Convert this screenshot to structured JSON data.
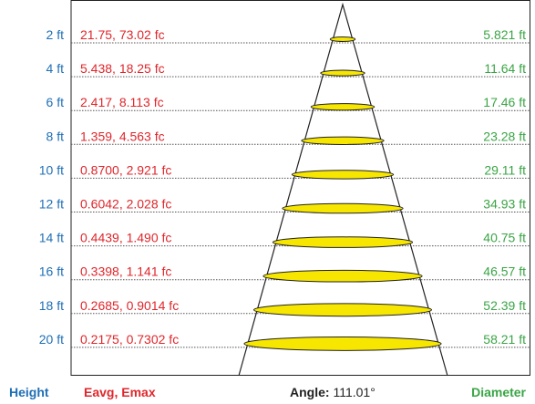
{
  "rows": [
    {
      "height": "2 ft",
      "illuminance": "21.75, 73.02 fc",
      "diameter": "5.821 ft"
    },
    {
      "height": "4 ft",
      "illuminance": "5.438, 18.25 fc",
      "diameter": "11.64 ft"
    },
    {
      "height": "6 ft",
      "illuminance": "2.417, 8.113 fc",
      "diameter": "17.46 ft"
    },
    {
      "height": "8 ft",
      "illuminance": "1.359, 4.563 fc",
      "diameter": "23.28 ft"
    },
    {
      "height": "10 ft",
      "illuminance": "0.8700, 2.921 fc",
      "diameter": "29.11 ft"
    },
    {
      "height": "12 ft",
      "illuminance": "0.6042, 2.028 fc",
      "diameter": "34.93 ft"
    },
    {
      "height": "14 ft",
      "illuminance": "0.4439, 1.490 fc",
      "diameter": "40.75 ft"
    },
    {
      "height": "16 ft",
      "illuminance": "0.3398, 1.141 fc",
      "diameter": "46.57 ft"
    },
    {
      "height": "18 ft",
      "illuminance": "0.2685, 0.9014 fc",
      "diameter": "52.39 ft"
    },
    {
      "height": "20 ft",
      "illuminance": "0.2175, 0.7302 fc",
      "diameter": "58.21 ft"
    }
  ],
  "footer": {
    "height": "Height",
    "illuminance": "Eavg, Emax",
    "angle_label": "Angle:",
    "angle_value": "111.01°",
    "diameter": "Diameter"
  }
}
